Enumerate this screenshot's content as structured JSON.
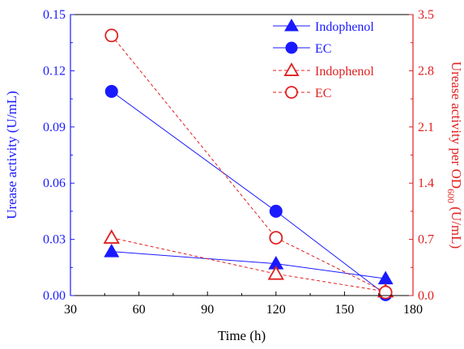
{
  "chart_data": {
    "type": "line",
    "xlabel": "Time (h)",
    "ylabel_left": "Urease activity (U/mL)",
    "ylabel_right": {
      "prefix": "Urease activity per OD",
      "subscript": "600",
      "suffix": " (U/mL)"
    },
    "xlim": [
      30,
      180
    ],
    "xticks": [
      "30",
      "60",
      "90",
      "120",
      "150",
      "180"
    ],
    "ylim_left": [
      0,
      0.15
    ],
    "yticks_left": [
      "0.00",
      "0.03",
      "0.06",
      "0.09",
      "0.12",
      "0.15"
    ],
    "ylim_right": [
      0,
      3.5
    ],
    "yticks_right": [
      "0.0",
      "0.7",
      "1.4",
      "2.1",
      "2.8",
      "3.5"
    ],
    "colors": {
      "left": "#1a1aff",
      "right": "#e02020"
    },
    "series": [
      {
        "name": "Indophenol",
        "axis": "left",
        "marker": "filled-triangle",
        "line": "solid",
        "x": [
          48,
          120,
          168
        ],
        "values": [
          0.0235,
          0.017,
          0.009
        ]
      },
      {
        "name": "EC",
        "axis": "left",
        "marker": "filled-circle",
        "line": "solid",
        "x": [
          48,
          120,
          168
        ],
        "values": [
          0.109,
          0.045,
          0.0005
        ]
      },
      {
        "name": "Indophenol",
        "axis": "right",
        "marker": "open-triangle",
        "line": "dashed",
        "x": [
          48,
          120,
          168
        ],
        "values": [
          0.72,
          0.27,
          0.05
        ]
      },
      {
        "name": "EC",
        "axis": "right",
        "marker": "open-circle",
        "line": "dashed",
        "x": [
          48,
          120,
          168
        ],
        "values": [
          3.24,
          0.72,
          0.04
        ]
      }
    ]
  }
}
